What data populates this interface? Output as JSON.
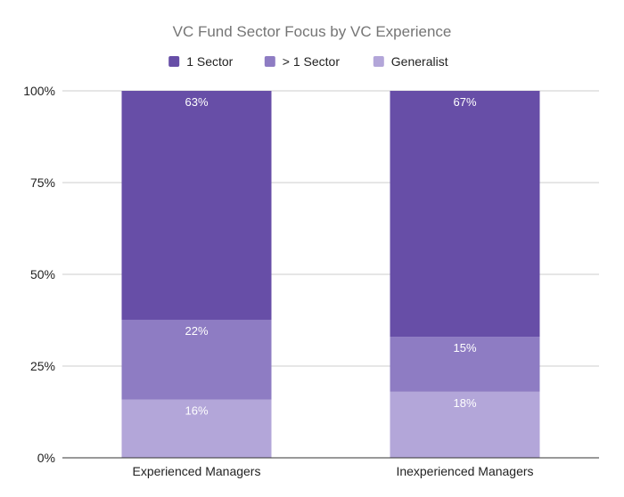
{
  "chart_data": {
    "type": "bar",
    "stacked": true,
    "title": "VC Fund Sector Focus by VC Experience",
    "xlabel": "",
    "ylabel": "",
    "categories": [
      "Experienced Managers",
      "Inexperienced Managers"
    ],
    "series": [
      {
        "name": "Generalist",
        "values": [
          16,
          18
        ],
        "color": "#b3a6d9"
      },
      {
        "name": "> 1 Sector",
        "values": [
          22,
          15
        ],
        "color": "#8e7cc3"
      },
      {
        "name": "1 Sector",
        "values": [
          63,
          67
        ],
        "color": "#674ea7"
      }
    ],
    "legend_order": [
      "1 Sector",
      "> 1 Sector",
      "Generalist"
    ],
    "legend_position": "top",
    "data_labels": [
      [
        "16%",
        "22%",
        "63%"
      ],
      [
        "18%",
        "15%",
        "67%"
      ]
    ],
    "ylim": [
      0,
      100
    ],
    "yticks": [
      "0%",
      "25%",
      "50%",
      "75%",
      "100%"
    ],
    "grid": true
  }
}
